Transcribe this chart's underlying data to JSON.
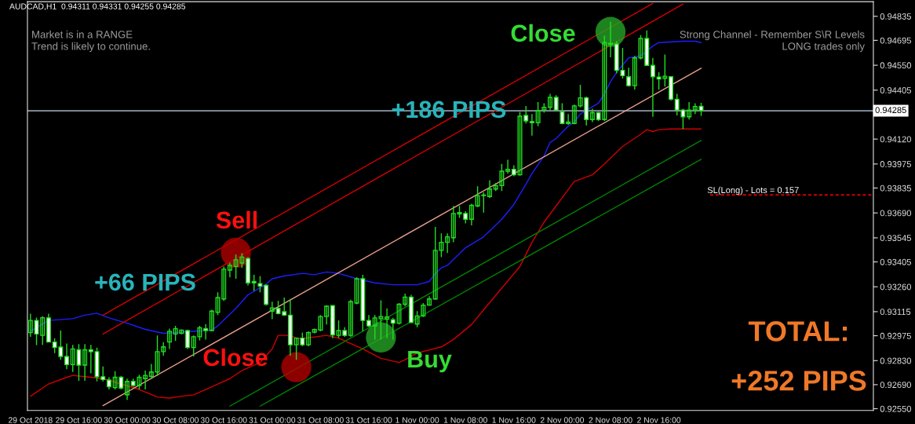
{
  "chart_data": {
    "type": "candlestick",
    "title": "AUDCAD,H1  0.94311 0.94331 0.94255 0.94285",
    "x": [
      "2018-10-29T08:00",
      "2018-10-29T09:00",
      "2018-10-29T10:00",
      "2018-10-29T11:00",
      "2018-10-29T12:00",
      "2018-10-29T13:00",
      "2018-10-29T14:00",
      "2018-10-29T15:00",
      "2018-10-29T16:00",
      "2018-10-29T17:00",
      "2018-10-29T18:00",
      "2018-10-29T19:00",
      "2018-10-29T20:00",
      "2018-10-29T21:00",
      "2018-10-29T22:00",
      "2018-10-29T23:00",
      "2018-10-30T00:00",
      "2018-10-30T01:00",
      "2018-10-30T02:00",
      "2018-10-30T03:00",
      "2018-10-30T04:00",
      "2018-10-30T05:00",
      "2018-10-30T06:00",
      "2018-10-30T07:00",
      "2018-10-30T08:00",
      "2018-10-30T09:00",
      "2018-10-30T10:00",
      "2018-10-30T11:00",
      "2018-10-30T12:00",
      "2018-10-30T13:00",
      "2018-10-30T14:00",
      "2018-10-30T15:00",
      "2018-10-30T16:00",
      "2018-10-30T17:00",
      "2018-10-30T18:00",
      "2018-10-30T19:00",
      "2018-10-30T20:00",
      "2018-10-30T21:00",
      "2018-10-30T22:00",
      "2018-10-30T23:00",
      "2018-10-31T00:00",
      "2018-10-31T01:00",
      "2018-10-31T02:00",
      "2018-10-31T03:00",
      "2018-10-31T04:00",
      "2018-10-31T05:00",
      "2018-10-31T06:00",
      "2018-10-31T07:00",
      "2018-10-31T08:00",
      "2018-10-31T09:00",
      "2018-10-31T10:00",
      "2018-10-31T11:00",
      "2018-10-31T12:00",
      "2018-10-31T13:00",
      "2018-10-31T14:00",
      "2018-10-31T15:00",
      "2018-10-31T16:00",
      "2018-10-31T17:00",
      "2018-10-31T18:00",
      "2018-10-31T19:00",
      "2018-10-31T20:00",
      "2018-10-31T21:00",
      "2018-10-31T22:00",
      "2018-10-31T23:00",
      "2018-11-01T00:00",
      "2018-11-01T01:00",
      "2018-11-01T02:00",
      "2018-11-01T03:00",
      "2018-11-01T04:00",
      "2018-11-01T05:00",
      "2018-11-01T06:00",
      "2018-11-01T07:00",
      "2018-11-01T08:00",
      "2018-11-01T09:00",
      "2018-11-01T10:00",
      "2018-11-01T11:00",
      "2018-11-01T12:00",
      "2018-11-01T13:00",
      "2018-11-01T14:00",
      "2018-11-01T15:00",
      "2018-11-01T16:00",
      "2018-11-01T17:00",
      "2018-11-01T18:00",
      "2018-11-01T19:00",
      "2018-11-01T20:00",
      "2018-11-01T21:00",
      "2018-11-01T22:00",
      "2018-11-01T23:00",
      "2018-11-02T00:00",
      "2018-11-02T01:00",
      "2018-11-02T02:00",
      "2018-11-02T03:00",
      "2018-11-02T04:00",
      "2018-11-02T05:00",
      "2018-11-02T06:00",
      "2018-11-02T07:00",
      "2018-11-02T08:00",
      "2018-11-02T09:00",
      "2018-11-02T10:00",
      "2018-11-02T11:00",
      "2018-11-02T12:00",
      "2018-11-02T13:00",
      "2018-11-02T14:00",
      "2018-11-02T15:00",
      "2018-11-02T16:00",
      "2018-11-02T17:00",
      "2018-11-02T18:00",
      "2018-11-02T19:00",
      "2018-11-02T20:00",
      "2018-11-02T21:00",
      "2018-11-02T22:00",
      "2018-11-02T23:00"
    ],
    "ohlc": [
      [
        0.92993,
        0.93103,
        0.92969,
        0.93064
      ],
      [
        0.93064,
        0.9308,
        0.92921,
        0.92985
      ],
      [
        0.92977,
        0.93088,
        0.92922,
        0.9308
      ],
      [
        0.93079,
        0.93103,
        0.92938,
        0.92938
      ],
      [
        0.92938,
        0.92961,
        0.92874,
        0.92906
      ],
      [
        0.92909,
        0.93005,
        0.92835,
        0.92854
      ],
      [
        0.92854,
        0.9293,
        0.9278,
        0.92807
      ],
      [
        0.92807,
        0.92922,
        0.92764,
        0.92898
      ],
      [
        0.92893,
        0.92926,
        0.92713,
        0.92804
      ],
      [
        0.92804,
        0.92926,
        0.92713,
        0.92893
      ],
      [
        0.92893,
        0.92922,
        0.92756,
        0.92882
      ],
      [
        0.92882,
        0.92906,
        0.92709,
        0.92736
      ],
      [
        0.92736,
        0.92796,
        0.92709,
        0.9272
      ],
      [
        0.92717,
        0.92733,
        0.92662,
        0.92678
      ],
      [
        0.92673,
        0.92768,
        0.92662,
        0.92733
      ],
      [
        0.92733,
        0.92741,
        0.92662,
        0.9267
      ],
      [
        0.92631,
        0.92725,
        0.92602,
        0.92709
      ],
      [
        0.92709,
        0.92725,
        0.92678,
        0.92685
      ],
      [
        0.92685,
        0.92748,
        0.92662,
        0.92733
      ],
      [
        0.92725,
        0.92772,
        0.92662,
        0.92744
      ],
      [
        0.92738,
        0.92811,
        0.92725,
        0.92764
      ],
      [
        0.92764,
        0.92977,
        0.92741,
        0.92882
      ],
      [
        0.92882,
        0.92938,
        0.92859,
        0.9291
      ],
      [
        0.92938,
        0.93016,
        0.92898,
        0.93001
      ],
      [
        0.92985,
        0.93032,
        0.92946,
        0.93016
      ],
      [
        0.92989,
        0.93011,
        0.92985,
        0.93008
      ],
      [
        0.93005,
        0.93011,
        0.92898,
        0.92906
      ],
      [
        0.92906,
        0.92977,
        0.92854,
        0.92969
      ],
      [
        0.92969,
        0.93032,
        0.92948,
        0.93021
      ],
      [
        0.93016,
        0.93043,
        0.92953,
        0.93005
      ],
      [
        0.93005,
        0.93126,
        0.93001,
        0.93118
      ],
      [
        0.93111,
        0.93228,
        0.93095,
        0.93197
      ],
      [
        0.93189,
        0.93378,
        0.93178,
        0.93362
      ],
      [
        0.93357,
        0.93401,
        0.93315,
        0.93385
      ],
      [
        0.93378,
        0.93448,
        0.93307,
        0.93417
      ],
      [
        0.93398,
        0.93456,
        0.9337,
        0.93433
      ],
      [
        0.93425,
        0.93433,
        0.93268,
        0.93283
      ],
      [
        0.93291,
        0.9333,
        0.93236,
        0.93283
      ],
      [
        0.93279,
        0.93322,
        0.93228,
        0.93264
      ],
      [
        0.93268,
        0.93275,
        0.9315,
        0.93158
      ],
      [
        0.93118,
        0.93173,
        0.93071,
        0.93137
      ],
      [
        0.93134,
        0.93178,
        0.93099,
        0.93104
      ],
      [
        0.93115,
        0.93197,
        0.9309,
        0.93095
      ],
      [
        0.93095,
        0.93189,
        0.92859,
        0.92922
      ],
      [
        0.92922,
        0.92961,
        0.92835,
        0.92961
      ],
      [
        0.92961,
        0.92993,
        0.92914,
        0.92922
      ],
      [
        0.92922,
        0.93001,
        0.92914,
        0.92993
      ],
      [
        0.92996,
        0.93016,
        0.92989,
        0.93011
      ],
      [
        0.93008,
        0.93095,
        0.93001,
        0.93087
      ],
      [
        0.93087,
        0.93153,
        0.9304,
        0.93147
      ],
      [
        0.9315,
        0.93153,
        0.92961,
        0.9298
      ],
      [
        0.92977,
        0.93064,
        0.92964,
        0.93005
      ],
      [
        0.93005,
        0.93024,
        0.92969,
        0.92977
      ],
      [
        0.92977,
        0.93184,
        0.92969,
        0.93173
      ],
      [
        0.93165,
        0.93315,
        0.93158,
        0.93307
      ],
      [
        0.93307,
        0.9333,
        0.93001,
        0.93064
      ],
      [
        0.93064,
        0.93095,
        0.93024,
        0.93032
      ],
      [
        0.93032,
        0.93095,
        0.92953,
        0.93079
      ],
      [
        0.93074,
        0.93181,
        0.92953,
        0.93087
      ],
      [
        0.93071,
        0.93134,
        0.92961,
        0.93084
      ],
      [
        0.93068,
        0.93079,
        0.92953,
        0.93048
      ],
      [
        0.93048,
        0.93165,
        0.9304,
        0.93158
      ],
      [
        0.93158,
        0.9322,
        0.93147,
        0.932
      ],
      [
        0.932,
        0.93213,
        0.93048,
        0.93052
      ],
      [
        0.93043,
        0.93118,
        0.93024,
        0.9309
      ],
      [
        0.9309,
        0.93165,
        0.93084,
        0.93153
      ],
      [
        0.93153,
        0.93205,
        0.9315,
        0.93189
      ],
      [
        0.93189,
        0.93608,
        0.93184,
        0.93472
      ],
      [
        0.93472,
        0.93571,
        0.93433,
        0.93519
      ],
      [
        0.93519,
        0.93571,
        0.93456,
        0.93551
      ],
      [
        0.93546,
        0.93731,
        0.93519,
        0.93687
      ],
      [
        0.93684,
        0.93731,
        0.93661,
        0.93692
      ],
      [
        0.93687,
        0.937,
        0.93629,
        0.93653
      ],
      [
        0.93653,
        0.93744,
        0.93618,
        0.93734
      ],
      [
        0.93731,
        0.93845,
        0.93723,
        0.93791
      ],
      [
        0.93791,
        0.9381,
        0.93692,
        0.93794
      ],
      [
        0.93786,
        0.93881,
        0.93778,
        0.93829
      ],
      [
        0.93829,
        0.93865,
        0.93818,
        0.93849
      ],
      [
        0.93849,
        0.93975,
        0.93818,
        0.93933
      ],
      [
        0.93933,
        0.93999,
        0.9392,
        0.93944
      ],
      [
        0.93944,
        0.93967,
        0.93904,
        0.93912
      ],
      [
        0.93912,
        0.94278,
        0.93907,
        0.94253
      ],
      [
        0.94258,
        0.94313,
        0.94211,
        0.94226
      ],
      [
        0.94222,
        0.94266,
        0.9414,
        0.94215
      ],
      [
        0.94215,
        0.94336,
        0.94195,
        0.94285
      ],
      [
        0.94289,
        0.94329,
        0.94274,
        0.94305
      ],
      [
        0.94305,
        0.94384,
        0.94289,
        0.94363
      ],
      [
        0.94363,
        0.94376,
        0.94281,
        0.94289
      ],
      [
        0.94278,
        0.94329,
        0.94206,
        0.94211
      ],
      [
        0.94211,
        0.94266,
        0.94203,
        0.94219
      ],
      [
        0.94211,
        0.94321,
        0.94206,
        0.94313
      ],
      [
        0.94313,
        0.94436,
        0.94305,
        0.9436
      ],
      [
        0.9436,
        0.94368,
        0.942,
        0.94234
      ],
      [
        0.94234,
        0.94297,
        0.94219,
        0.94274
      ],
      [
        0.94274,
        0.94278,
        0.94226,
        0.94234
      ],
      [
        0.94234,
        0.94722,
        0.94226,
        0.94682
      ],
      [
        0.94671,
        0.94803,
        0.94596,
        0.94678
      ],
      [
        0.94674,
        0.9469,
        0.94502,
        0.9452
      ],
      [
        0.9452,
        0.94651,
        0.94473,
        0.94489
      ],
      [
        0.94483,
        0.94536,
        0.94426,
        0.94431
      ],
      [
        0.94431,
        0.94604,
        0.94407,
        0.94593
      ],
      [
        0.94593,
        0.94725,
        0.94583,
        0.94706
      ],
      [
        0.94706,
        0.94753,
        0.94546,
        0.94549
      ],
      [
        0.94549,
        0.94593,
        0.9425,
        0.94483
      ],
      [
        0.94481,
        0.94509,
        0.94407,
        0.9447
      ],
      [
        0.94473,
        0.94612,
        0.94426,
        0.94486
      ],
      [
        0.94483,
        0.94486,
        0.94344,
        0.94352
      ],
      [
        0.94352,
        0.94384,
        0.94258,
        0.94289
      ],
      [
        0.94289,
        0.94297,
        0.94179,
        0.9425
      ],
      [
        0.9425,
        0.94336,
        0.94234,
        0.94289
      ],
      [
        0.94289,
        0.94329,
        0.94266,
        0.9431
      ],
      [
        0.94311,
        0.94331,
        0.94255,
        0.94285
      ]
    ],
    "series": [
      {
        "type": "line",
        "color": "#1e1eff",
        "x": [
          "2018-10-29T08:00",
          "2018-10-29T11:00",
          "2018-10-29T15:00",
          "2018-10-29T17:00",
          "2018-10-29T19:00",
          "2018-10-29T21:00",
          "2018-10-30T00:00",
          "2018-10-30T03:00",
          "2018-10-30T06:00",
          "2018-10-30T14:00",
          "2018-10-30T15:00",
          "2018-10-30T18:00",
          "2018-10-30T20:00",
          "2018-10-30T23:00",
          "2018-10-31T00:00",
          "2018-10-31T02:00",
          "2018-10-31T05:00",
          "2018-10-31T07:00",
          "2018-10-31T09:00",
          "2018-10-31T11:00",
          "2018-10-31T14:00",
          "2018-10-31T17:00",
          "2018-10-31T20:00",
          "2018-11-01T00:00",
          "2018-11-01T02:00",
          "2018-11-01T03:00",
          "2018-11-01T04:00",
          "2018-11-01T05:00",
          "2018-11-01T08:00",
          "2018-11-01T11:00",
          "2018-11-01T14:00",
          "2018-11-01T16:00",
          "2018-11-01T18:00",
          "2018-11-01T19:00",
          "2018-11-01T21:00",
          "2018-11-01T22:00",
          "2018-11-01T23:00",
          "2018-11-02T01:00",
          "2018-11-02T02:00",
          "2018-11-02T03:00",
          "2018-11-02T06:00",
          "2018-11-02T07:00",
          "2018-11-02T08:00",
          "2018-11-02T09:00",
          "2018-11-02T11:00",
          "2018-11-02T13:00",
          "2018-11-02T15:00",
          "2018-11-02T16:00",
          "2018-11-02T20:00",
          "2018-11-02T22:00",
          "2018-11-02T23:00"
        ],
        "values": [
          0.93001,
          0.93064,
          0.93074,
          0.93095,
          0.93106,
          0.93079,
          0.93048,
          0.93012,
          0.92989,
          0.93008,
          0.93032,
          0.93134,
          0.93213,
          0.93275,
          0.93307,
          0.93323,
          0.93338,
          0.9333,
          0.93346,
          0.93338,
          0.93307,
          0.93283,
          0.93272,
          0.93272,
          0.93291,
          0.93338,
          0.9337,
          0.93385,
          0.93487,
          0.93551,
          0.93653,
          0.93739,
          0.93857,
          0.9392,
          0.94022,
          0.94101,
          0.94124,
          0.94195,
          0.94219,
          0.94266,
          0.94329,
          0.94384,
          0.94454,
          0.94509,
          0.94593,
          0.94604,
          0.94662,
          0.94682,
          0.9469,
          0.9469,
          0.94682
        ]
      },
      {
        "type": "line",
        "color": "#d00000",
        "x": [
          "2018-10-29T08:00",
          "2018-10-29T11:00",
          "2018-10-29T14:00",
          "2018-10-29T15:00",
          "2018-10-29T18:00",
          "2018-10-29T20:00",
          "2018-10-29T23:00",
          "2018-10-30T02:00",
          "2018-10-30T05:00",
          "2018-10-30T07:00",
          "2018-10-30T09:00",
          "2018-10-30T11:00",
          "2018-10-30T13:00",
          "2018-10-30T15:00",
          "2018-10-30T17:00",
          "2018-10-30T19:00",
          "2018-10-30T22:00",
          "2018-10-31T00:00",
          "2018-10-31T01:00",
          "2018-10-31T03:00",
          "2018-10-31T04:00",
          "2018-10-31T05:00",
          "2018-10-31T09:00",
          "2018-10-31T11:00",
          "2018-10-31T15:00",
          "2018-10-31T18:00",
          "2018-10-31T21:00",
          "2018-10-31T22:00",
          "2018-11-01T00:00",
          "2018-11-01T04:00",
          "2018-11-01T06:00",
          "2018-11-01T09:00",
          "2018-11-01T11:00",
          "2018-11-01T14:00",
          "2018-11-01T17:00",
          "2018-11-01T19:00",
          "2018-11-01T21:00",
          "2018-11-01T23:00",
          "2018-11-02T01:00",
          "2018-11-02T02:00",
          "2018-11-02T05:00",
          "2018-11-02T07:00",
          "2018-11-02T10:00",
          "2018-11-02T13:00",
          "2018-11-02T14:00",
          "2018-11-02T15:00",
          "2018-11-02T16:00",
          "2018-11-02T18:00",
          "2018-11-02T23:00"
        ],
        "values": [
          0.92623,
          0.92694,
          0.92733,
          0.92744,
          0.92733,
          0.92725,
          0.92694,
          0.92662,
          0.92618,
          0.92612,
          0.92623,
          0.92631,
          0.92662,
          0.92694,
          0.92725,
          0.92772,
          0.92819,
          0.92898,
          0.92977,
          0.92977,
          0.92961,
          0.92958,
          0.92977,
          0.92961,
          0.92898,
          0.92843,
          0.92819,
          0.92835,
          0.92874,
          0.9291,
          0.92953,
          0.9304,
          0.93126,
          0.93252,
          0.93378,
          0.93519,
          0.93637,
          0.93731,
          0.93826,
          0.93873,
          0.93912,
          0.93975,
          0.94077,
          0.94148,
          0.94175,
          0.94164,
          0.94175,
          0.94179,
          0.94179
        ]
      },
      {
        "type": "line",
        "color": "#e8a08a",
        "x": [
          "2018-10-29T20:00",
          "2018-11-02T23:00"
        ],
        "values": [
          0.92568,
          0.94533
        ]
      },
      {
        "type": "line",
        "color": "#d00000",
        "x": [
          "2018-10-29T20:00",
          "2018-11-02T15:00"
        ],
        "values": [
          0.93095,
          0.9491
        ]
      },
      {
        "type": "line",
        "color": "#d00000",
        "x": [
          "2018-10-29T20:00",
          "2018-11-02T20:00"
        ],
        "values": [
          0.92985,
          0.94906
        ]
      },
      {
        "type": "line",
        "color": "#008000",
        "x": [
          "2018-10-30T17:00",
          "2018-11-02T23:00"
        ],
        "values": [
          0.92565,
          0.94112
        ]
      },
      {
        "type": "line",
        "color": "#008000",
        "x": [
          "2018-10-30T22:00",
          "2018-11-02T23:00"
        ],
        "values": [
          0.92565,
          0.94002
        ]
      },
      {
        "type": "scatter",
        "marker": "circle",
        "x": [
          "2018-10-30T18:00",
          "2018-10-31T04:00",
          "2018-10-31T18:00",
          "2018-11-02T08:00"
        ],
        "values": [
          0.93458,
          0.92792,
          0.92965,
          0.94744
        ],
        "colors": [
          "#b00000",
          "#b00000",
          "#26a226",
          "#26a226"
        ]
      }
    ],
    "xlim": [
      "2018-10-29T07:30",
      "2018-11-04T03:30"
    ],
    "xticks": [
      {
        "value": "2018-10-29T08:00",
        "label": "29 Oct 2018"
      },
      {
        "value": "2018-10-29T16:00",
        "label": "29 Oct 16:00"
      },
      {
        "value": "2018-10-30T00:00",
        "label": "30 Oct 00:00"
      },
      {
        "value": "2018-10-30T08:00",
        "label": "30 Oct 08:00"
      },
      {
        "value": "2018-10-30T16:00",
        "label": "30 Oct 16:00"
      },
      {
        "value": "2018-10-31T00:00",
        "label": "31 Oct 00:00"
      },
      {
        "value": "2018-10-31T08:00",
        "label": "31 Oct 08:00"
      },
      {
        "value": "2018-10-31T16:00",
        "label": "31 Oct 16:00"
      },
      {
        "value": "2018-11-01T00:00",
        "label": "1 Nov 00:00"
      },
      {
        "value": "2018-11-01T08:00",
        "label": "1 Nov 08:00"
      },
      {
        "value": "2018-11-01T16:00",
        "label": "1 Nov 16:00"
      },
      {
        "value": "2018-11-02T00:00",
        "label": "2 Nov 00:00"
      },
      {
        "value": "2018-11-02T08:00",
        "label": "2 Nov 08:00"
      },
      {
        "value": "2018-11-02T16:00",
        "label": "2 Nov 16:00"
      }
    ],
    "ylim": [
      0.9254,
      0.9492
    ],
    "yticks": [
      {
        "value": 0.9255,
        "label": "0.92550"
      },
      {
        "value": 0.9269,
        "label": "0.92690"
      },
      {
        "value": 0.9283,
        "label": "0.92830"
      },
      0.92975,
      0.93115,
      {
        "value": 0.9326,
        "label": "0.93260"
      },
      0.93405,
      0.93545,
      {
        "value": 0.9369,
        "label": "0.93690"
      },
      0.93835,
      0.93975,
      {
        "value": 0.9412,
        "label": "0.94120"
      },
      0.94405,
      {
        "value": 0.9455,
        "label": "0.94550"
      },
      0.94695,
      0.94835
    ],
    "ref_lines": [
      {
        "axis": "y",
        "value": 0.94285,
        "label": "0.94285",
        "color": "#8c9aa8"
      },
      {
        "axis": "y",
        "value": 0.93795,
        "color": "#ff0000",
        "line_style": "dashed"
      }
    ],
    "annotations": [
      "Market is in a RANGE",
      "Trend is likely to continue.",
      "Strong Channel - Remember S\\R Levels",
      "LONG trades only",
      "+66 PIPS",
      "Sell",
      "Close",
      "Buy",
      "+186 PIPS",
      "Close",
      "TOTAL:",
      "+252 PIPS",
      {
        "text": "SL(Long) - Lots = 0.157",
        "x": "2018-11-03T00:00",
        "y": 0.93795
      }
    ],
    "grid": false,
    "legend": false
  }
}
